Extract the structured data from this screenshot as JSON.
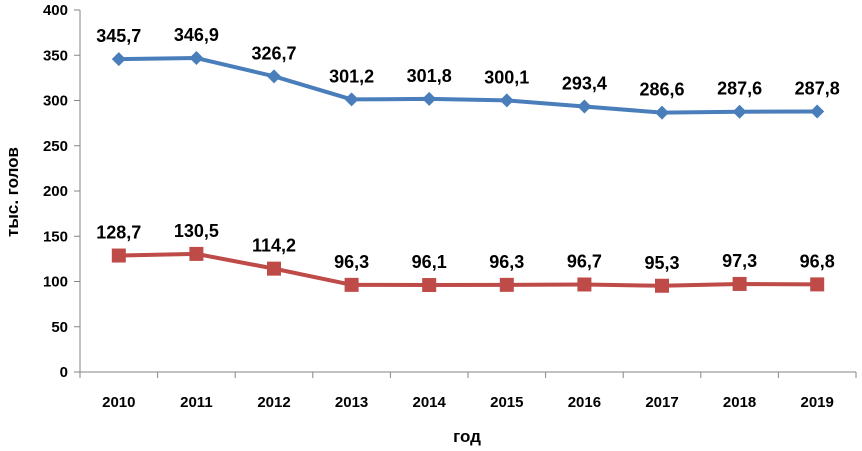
{
  "chart_data": {
    "type": "line",
    "categories": [
      "2010",
      "2011",
      "2012",
      "2013",
      "2014",
      "2015",
      "2016",
      "2017",
      "2018",
      "2019"
    ],
    "series": [
      {
        "values": [
          345.7,
          346.9,
          326.7,
          301.2,
          301.8,
          300.1,
          293.4,
          286.6,
          287.6,
          287.8
        ],
        "labels": [
          "345,7",
          "346,9",
          "326,7",
          "301,2",
          "301,8",
          "300,1",
          "293,4",
          "286,6",
          "287,6",
          "287,8"
        ],
        "color": "#4a7ebb",
        "marker": "diamond"
      },
      {
        "values": [
          128.7,
          130.5,
          114.2,
          96.3,
          96.1,
          96.3,
          96.7,
          95.3,
          97.3,
          96.8
        ],
        "labels": [
          "128,7",
          "130,5",
          "114,2",
          "96,3",
          "96,1",
          "96,3",
          "96,7",
          "95,3",
          "97,3",
          "96,8"
        ],
        "color": "#be4b48",
        "marker": "square"
      }
    ],
    "ylim": [
      0,
      400
    ],
    "yticks": [
      0,
      50,
      100,
      150,
      200,
      250,
      300,
      350,
      400
    ],
    "xlabel": "год",
    "ylabel": "тыс. голов",
    "grid": false,
    "legend": "none"
  }
}
